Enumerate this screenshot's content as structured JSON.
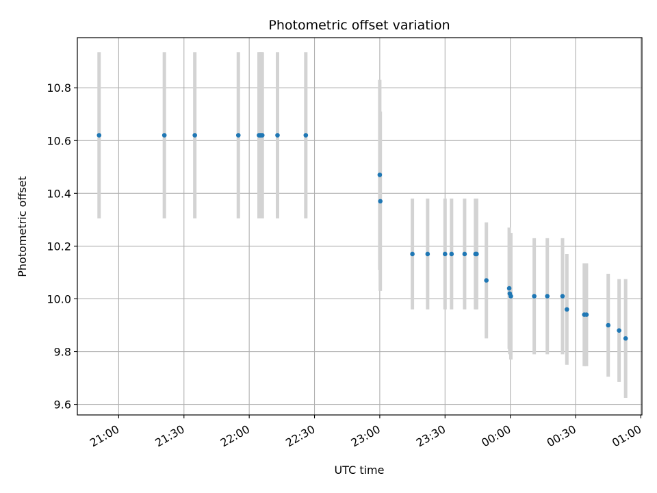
{
  "chart_data": {
    "type": "scatter",
    "title": "Photometric offset variation",
    "xlabel": "UTC time",
    "ylabel": "Photometric offset",
    "x_ticks": [
      "21:00",
      "21:30",
      "22:00",
      "22:30",
      "23:00",
      "23:30",
      "00:00",
      "00:30",
      "01:00"
    ],
    "y_ticks": [
      "9.6",
      "9.8",
      "10.0",
      "10.2",
      "10.4",
      "10.6",
      "10.8"
    ],
    "grid": true,
    "legend": "none",
    "colors": {
      "point": "#1f77b4",
      "errorbar": "#d3d3d3",
      "grid": "#b0b0b0"
    },
    "xlim": [
      "20:41",
      "01:00:30"
    ],
    "ylim": [
      9.56,
      10.99
    ],
    "points": [
      {
        "x": "20:51",
        "y": 10.62,
        "yerr": 0.315
      },
      {
        "x": "21:21",
        "y": 10.62,
        "yerr": 0.315
      },
      {
        "x": "21:35",
        "y": 10.62,
        "yerr": 0.315
      },
      {
        "x": "21:55",
        "y": 10.62,
        "yerr": 0.315
      },
      {
        "x": "22:04:30",
        "y": 10.62,
        "yerr": 0.315
      },
      {
        "x": "22:05",
        "y": 10.62,
        "yerr": 0.315
      },
      {
        "x": "22:05:30",
        "y": 10.62,
        "yerr": 0.315
      },
      {
        "x": "22:06",
        "y": 10.62,
        "yerr": 0.315
      },
      {
        "x": "22:13",
        "y": 10.62,
        "yerr": 0.315
      },
      {
        "x": "22:26",
        "y": 10.62,
        "yerr": 0.315
      },
      {
        "x": "23:00",
        "y": 10.47,
        "yerr": 0.36
      },
      {
        "x": "23:00:15",
        "y": 10.37,
        "yerr": 0.34
      },
      {
        "x": "23:15",
        "y": 10.17,
        "yerr": 0.21
      },
      {
        "x": "23:22",
        "y": 10.17,
        "yerr": 0.21
      },
      {
        "x": "23:30",
        "y": 10.17,
        "yerr": 0.21
      },
      {
        "x": "23:33",
        "y": 10.17,
        "yerr": 0.21
      },
      {
        "x": "23:39",
        "y": 10.17,
        "yerr": 0.21
      },
      {
        "x": "23:44",
        "y": 10.17,
        "yerr": 0.21
      },
      {
        "x": "23:44:30",
        "y": 10.17,
        "yerr": 0.21
      },
      {
        "x": "23:49",
        "y": 10.07,
        "yerr": 0.22
      },
      {
        "x": "23:59:30",
        "y": 10.04,
        "yerr": 0.23
      },
      {
        "x": "23:59:45",
        "y": 10.02,
        "yerr": 0.23
      },
      {
        "x": "00:00:15",
        "y": 10.01,
        "yerr": 0.24
      },
      {
        "x": "00:11",
        "y": 10.01,
        "yerr": 0.22
      },
      {
        "x": "00:17",
        "y": 10.01,
        "yerr": 0.22
      },
      {
        "x": "00:24",
        "y": 10.01,
        "yerr": 0.22
      },
      {
        "x": "00:26",
        "y": 9.96,
        "yerr": 0.21
      },
      {
        "x": "00:34",
        "y": 9.94,
        "yerr": 0.195
      },
      {
        "x": "00:35",
        "y": 9.94,
        "yerr": 0.195
      },
      {
        "x": "00:45",
        "y": 9.9,
        "yerr": 0.195
      },
      {
        "x": "00:50",
        "y": 9.88,
        "yerr": 0.195
      },
      {
        "x": "00:53",
        "y": 9.85,
        "yerr": 0.225
      }
    ]
  }
}
